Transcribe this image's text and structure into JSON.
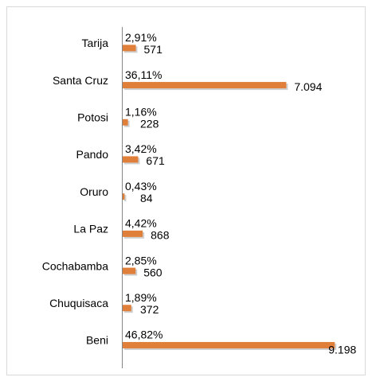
{
  "chart_data": {
    "type": "bar",
    "orientation": "horizontal",
    "categories": [
      "Tarija",
      "Santa Cruz",
      "Potosi",
      "Pando",
      "Oruro",
      "La Paz",
      "Cochabamba",
      "Chuquisaca",
      "Beni"
    ],
    "values": [
      571,
      7094,
      228,
      671,
      84,
      868,
      560,
      372,
      9198
    ],
    "value_labels": [
      "571",
      "7.094",
      "228",
      "671",
      "84",
      "868",
      "560",
      "372",
      "9.198"
    ],
    "shares": [
      2.91,
      36.11,
      1.16,
      3.42,
      0.43,
      4.42,
      2.85,
      1.89,
      46.82
    ],
    "share_labels": [
      "2,91%",
      "36,11%",
      "1,16%",
      "3,42%",
      "0,43%",
      "4,42%",
      "2,85%",
      "1,89%",
      "46,82%"
    ],
    "color": "#e07f3a",
    "xlim": [
      0,
      9500
    ]
  }
}
